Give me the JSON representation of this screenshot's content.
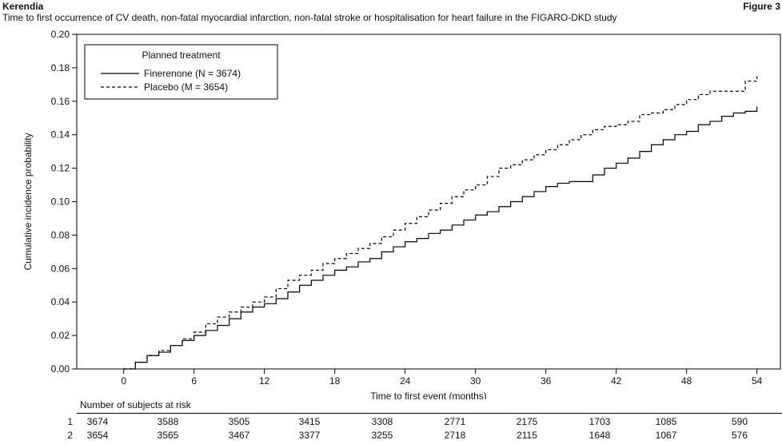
{
  "header": {
    "brand": "Kerendia",
    "figure": "Figure 3",
    "subtitle": "Time to first occurrence of CV death, non-fatal myocardial infarction, non-fatal stroke or hospitalisation for heart failure in the FIGARO-DKD study"
  },
  "chart_data": {
    "type": "line",
    "xlabel": "Time to first event (months)",
    "ylabel": "Cumulative incidence probability",
    "xlim": [
      -4,
      56
    ],
    "ylim": [
      0,
      0.2
    ],
    "xticks": [
      0,
      6,
      12,
      18,
      24,
      30,
      36,
      42,
      48,
      54
    ],
    "yticks": [
      0.0,
      0.02,
      0.04,
      0.06,
      0.08,
      0.1,
      0.12,
      0.14,
      0.16,
      0.18,
      0.2
    ],
    "ytick_labels": [
      "0.00",
      "0.02",
      "0.04",
      "0.06",
      "0.08",
      "0.10",
      "0.12",
      "0.14",
      "0.16",
      "0.18",
      "0.20"
    ],
    "grid": false,
    "legend": {
      "title": "Planned treatment",
      "position": "top-left"
    },
    "series": [
      {
        "name": "Finerenone (N = 3674)",
        "style": "solid",
        "color": "#000000",
        "x": [
          0,
          1,
          2,
          3,
          4,
          5,
          6,
          7,
          8,
          9,
          10,
          11,
          12,
          13,
          14,
          15,
          16,
          17,
          18,
          19,
          20,
          21,
          22,
          23,
          24,
          25,
          26,
          27,
          28,
          29,
          30,
          31,
          32,
          33,
          34,
          35,
          36,
          37,
          38,
          39,
          40,
          41,
          42,
          43,
          44,
          45,
          46,
          47,
          48,
          49,
          50,
          51,
          52,
          53,
          54
        ],
        "y": [
          0,
          0.004,
          0.008,
          0.01,
          0.014,
          0.017,
          0.02,
          0.023,
          0.026,
          0.03,
          0.034,
          0.037,
          0.039,
          0.042,
          0.046,
          0.05,
          0.053,
          0.056,
          0.059,
          0.061,
          0.064,
          0.066,
          0.07,
          0.073,
          0.076,
          0.078,
          0.081,
          0.083,
          0.086,
          0.089,
          0.092,
          0.094,
          0.097,
          0.1,
          0.103,
          0.106,
          0.109,
          0.111,
          0.112,
          0.112,
          0.116,
          0.12,
          0.123,
          0.126,
          0.13,
          0.134,
          0.137,
          0.14,
          0.142,
          0.146,
          0.148,
          0.151,
          0.153,
          0.154,
          0.157
        ]
      },
      {
        "name": "Placebo (M = 3654)",
        "style": "dashed",
        "color": "#000000",
        "x": [
          0,
          1,
          2,
          3,
          4,
          5,
          6,
          7,
          8,
          9,
          10,
          11,
          12,
          13,
          14,
          15,
          16,
          17,
          18,
          19,
          20,
          21,
          22,
          23,
          24,
          25,
          26,
          27,
          28,
          29,
          30,
          31,
          32,
          33,
          34,
          35,
          36,
          37,
          38,
          39,
          40,
          41,
          42,
          43,
          44,
          45,
          46,
          47,
          48,
          49,
          50,
          51,
          52,
          53,
          54
        ],
        "y": [
          0,
          0.004,
          0.008,
          0.011,
          0.014,
          0.018,
          0.022,
          0.027,
          0.031,
          0.034,
          0.037,
          0.04,
          0.043,
          0.048,
          0.053,
          0.056,
          0.059,
          0.063,
          0.066,
          0.069,
          0.072,
          0.075,
          0.079,
          0.083,
          0.087,
          0.091,
          0.095,
          0.099,
          0.103,
          0.107,
          0.11,
          0.115,
          0.12,
          0.122,
          0.125,
          0.128,
          0.131,
          0.134,
          0.137,
          0.14,
          0.143,
          0.145,
          0.146,
          0.148,
          0.152,
          0.153,
          0.155,
          0.158,
          0.161,
          0.164,
          0.166,
          0.166,
          0.166,
          0.172,
          0.175
        ]
      }
    ]
  },
  "risk_table": {
    "title": "Number of subjects at risk",
    "rows": [
      {
        "label": "1",
        "values": [
          "3674",
          "3588",
          "3505",
          "3415",
          "3308",
          "2771",
          "2175",
          "1703",
          "1085",
          "590"
        ]
      },
      {
        "label": "2",
        "values": [
          "3654",
          "3565",
          "3467",
          "3377",
          "3255",
          "2718",
          "2115",
          "1648",
          "1067",
          "576"
        ]
      }
    ]
  }
}
